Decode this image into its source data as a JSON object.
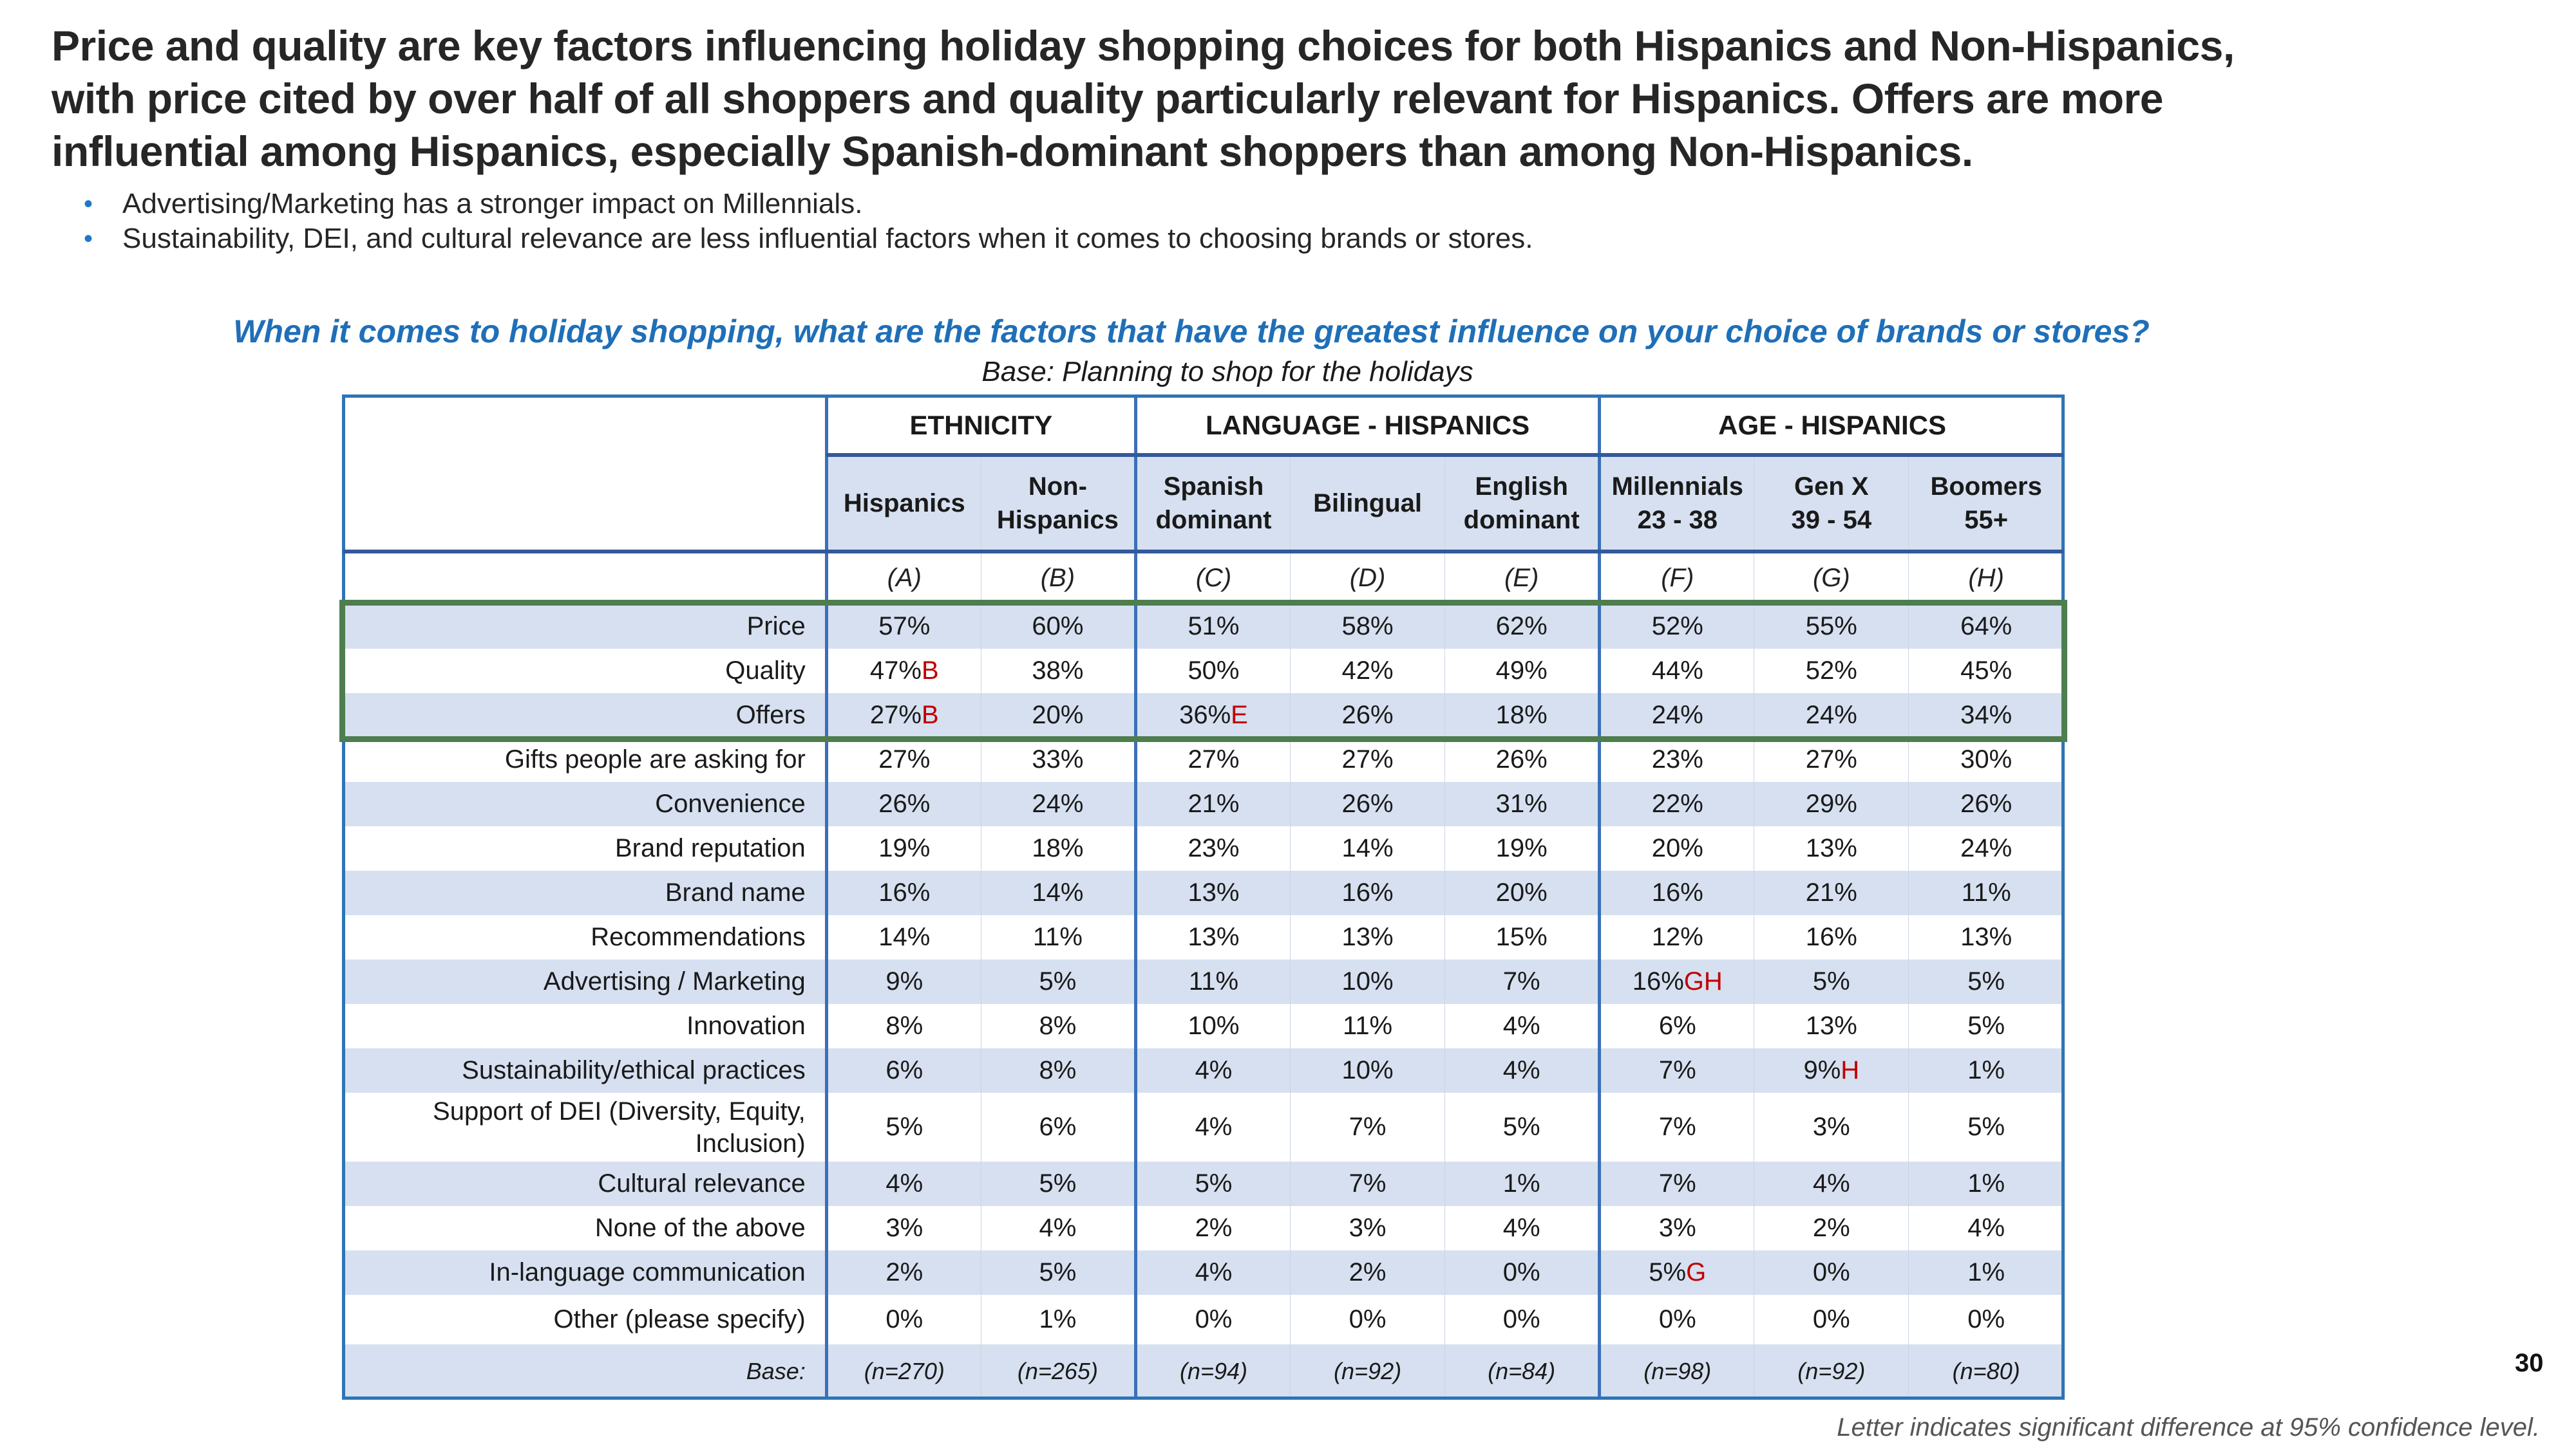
{
  "headline": "Price and quality are key factors influencing holiday shopping choices for both Hispanics and Non-Hispanics, with price cited by over half of all shoppers and quality particularly relevant for Hispanics. Offers are more influential among Hispanics, especially Spanish-dominant shoppers than among Non-Hispanics.",
  "bullets": [
    "Advertising/Marketing has a stronger impact on Millennials.",
    "Sustainability, DEI, and cultural relevance are less influential factors when it comes to choosing brands or stores."
  ],
  "bullet_icon": "•",
  "question": "When it comes to holiday shopping, what are the factors that have the greatest influence on your choice of brands or stores?",
  "base_note": "Base: Planning to shop for the holidays",
  "colors": {
    "accent_blue": "#1f6fb8",
    "border_blue": "#2e74b5",
    "row_shade": "#d6e0f0",
    "highlight_green": "#4e7d4e",
    "significance_red": "#c00000"
  },
  "table": {
    "groups": [
      "ETHNICITY",
      "LANGUAGE - HISPANICS",
      "AGE - HISPANICS"
    ],
    "columns": [
      {
        "line1": "Hispanics",
        "line2": "",
        "letter": "(A)"
      },
      {
        "line1": "Non-",
        "line2": "Hispanics",
        "letter": "(B)"
      },
      {
        "line1": "Spanish",
        "line2": "dominant",
        "letter": "(C)"
      },
      {
        "line1": "Bilingual",
        "line2": "",
        "letter": "(D)"
      },
      {
        "line1": "English",
        "line2": "dominant",
        "letter": "(E)"
      },
      {
        "line1": "Millennials",
        "line2": "23 - 38",
        "letter": "(F)"
      },
      {
        "line1": "Gen X",
        "line2": "39 - 54",
        "letter": "(G)"
      },
      {
        "line1": "Boomers",
        "line2": "55+",
        "letter": "(H)"
      }
    ],
    "rows": [
      {
        "label": "Price",
        "cells": [
          {
            "v": "57%",
            "s": ""
          },
          {
            "v": "60%",
            "s": ""
          },
          {
            "v": "51%",
            "s": ""
          },
          {
            "v": "58%",
            "s": ""
          },
          {
            "v": "62%",
            "s": ""
          },
          {
            "v": "52%",
            "s": ""
          },
          {
            "v": "55%",
            "s": ""
          },
          {
            "v": "64%",
            "s": ""
          }
        ]
      },
      {
        "label": "Quality",
        "cells": [
          {
            "v": "47%",
            "s": "B"
          },
          {
            "v": "38%",
            "s": ""
          },
          {
            "v": "50%",
            "s": ""
          },
          {
            "v": "42%",
            "s": ""
          },
          {
            "v": "49%",
            "s": ""
          },
          {
            "v": "44%",
            "s": ""
          },
          {
            "v": "52%",
            "s": ""
          },
          {
            "v": "45%",
            "s": ""
          }
        ]
      },
      {
        "label": "Offers",
        "cells": [
          {
            "v": "27%",
            "s": "B"
          },
          {
            "v": "20%",
            "s": ""
          },
          {
            "v": "36%",
            "s": "E"
          },
          {
            "v": "26%",
            "s": ""
          },
          {
            "v": "18%",
            "s": ""
          },
          {
            "v": "24%",
            "s": ""
          },
          {
            "v": "24%",
            "s": ""
          },
          {
            "v": "34%",
            "s": ""
          }
        ]
      },
      {
        "label": "Gifts people are asking for",
        "cells": [
          {
            "v": "27%",
            "s": ""
          },
          {
            "v": "33%",
            "s": ""
          },
          {
            "v": "27%",
            "s": ""
          },
          {
            "v": "27%",
            "s": ""
          },
          {
            "v": "26%",
            "s": ""
          },
          {
            "v": "23%",
            "s": ""
          },
          {
            "v": "27%",
            "s": ""
          },
          {
            "v": "30%",
            "s": ""
          }
        ]
      },
      {
        "label": "Convenience",
        "cells": [
          {
            "v": "26%",
            "s": ""
          },
          {
            "v": "24%",
            "s": ""
          },
          {
            "v": "21%",
            "s": ""
          },
          {
            "v": "26%",
            "s": ""
          },
          {
            "v": "31%",
            "s": ""
          },
          {
            "v": "22%",
            "s": ""
          },
          {
            "v": "29%",
            "s": ""
          },
          {
            "v": "26%",
            "s": ""
          }
        ]
      },
      {
        "label": "Brand reputation",
        "cells": [
          {
            "v": "19%",
            "s": ""
          },
          {
            "v": "18%",
            "s": ""
          },
          {
            "v": "23%",
            "s": ""
          },
          {
            "v": "14%",
            "s": ""
          },
          {
            "v": "19%",
            "s": ""
          },
          {
            "v": "20%",
            "s": ""
          },
          {
            "v": "13%",
            "s": ""
          },
          {
            "v": "24%",
            "s": ""
          }
        ]
      },
      {
        "label": "Brand name",
        "cells": [
          {
            "v": "16%",
            "s": ""
          },
          {
            "v": "14%",
            "s": ""
          },
          {
            "v": "13%",
            "s": ""
          },
          {
            "v": "16%",
            "s": ""
          },
          {
            "v": "20%",
            "s": ""
          },
          {
            "v": "16%",
            "s": ""
          },
          {
            "v": "21%",
            "s": ""
          },
          {
            "v": "11%",
            "s": ""
          }
        ]
      },
      {
        "label": "Recommendations",
        "cells": [
          {
            "v": "14%",
            "s": ""
          },
          {
            "v": "11%",
            "s": ""
          },
          {
            "v": "13%",
            "s": ""
          },
          {
            "v": "13%",
            "s": ""
          },
          {
            "v": "15%",
            "s": ""
          },
          {
            "v": "12%",
            "s": ""
          },
          {
            "v": "16%",
            "s": ""
          },
          {
            "v": "13%",
            "s": ""
          }
        ]
      },
      {
        "label": "Advertising / Marketing",
        "cells": [
          {
            "v": "9%",
            "s": ""
          },
          {
            "v": "5%",
            "s": ""
          },
          {
            "v": "11%",
            "s": ""
          },
          {
            "v": "10%",
            "s": ""
          },
          {
            "v": "7%",
            "s": ""
          },
          {
            "v": "16%",
            "s": "GH"
          },
          {
            "v": "5%",
            "s": ""
          },
          {
            "v": "5%",
            "s": ""
          }
        ]
      },
      {
        "label": "Innovation",
        "cells": [
          {
            "v": "8%",
            "s": ""
          },
          {
            "v": "8%",
            "s": ""
          },
          {
            "v": "10%",
            "s": ""
          },
          {
            "v": "11%",
            "s": ""
          },
          {
            "v": "4%",
            "s": ""
          },
          {
            "v": "6%",
            "s": ""
          },
          {
            "v": "13%",
            "s": ""
          },
          {
            "v": "5%",
            "s": ""
          }
        ]
      },
      {
        "label": "Sustainability/ethical practices",
        "cells": [
          {
            "v": "6%",
            "s": ""
          },
          {
            "v": "8%",
            "s": ""
          },
          {
            "v": "4%",
            "s": ""
          },
          {
            "v": "10%",
            "s": ""
          },
          {
            "v": "4%",
            "s": ""
          },
          {
            "v": "7%",
            "s": ""
          },
          {
            "v": "9%",
            "s": "H"
          },
          {
            "v": "1%",
            "s": ""
          }
        ]
      },
      {
        "label": "Support of DEI (Diversity, Equity, Inclusion)",
        "cells": [
          {
            "v": "5%",
            "s": ""
          },
          {
            "v": "6%",
            "s": ""
          },
          {
            "v": "4%",
            "s": ""
          },
          {
            "v": "7%",
            "s": ""
          },
          {
            "v": "5%",
            "s": ""
          },
          {
            "v": "7%",
            "s": ""
          },
          {
            "v": "3%",
            "s": ""
          },
          {
            "v": "5%",
            "s": ""
          }
        ]
      },
      {
        "label": "Cultural relevance",
        "cells": [
          {
            "v": "4%",
            "s": ""
          },
          {
            "v": "5%",
            "s": ""
          },
          {
            "v": "5%",
            "s": ""
          },
          {
            "v": "7%",
            "s": ""
          },
          {
            "v": "1%",
            "s": ""
          },
          {
            "v": "7%",
            "s": ""
          },
          {
            "v": "4%",
            "s": ""
          },
          {
            "v": "1%",
            "s": ""
          }
        ]
      },
      {
        "label": "None of the above",
        "cells": [
          {
            "v": "3%",
            "s": ""
          },
          {
            "v": "4%",
            "s": ""
          },
          {
            "v": "2%",
            "s": ""
          },
          {
            "v": "3%",
            "s": ""
          },
          {
            "v": "4%",
            "s": ""
          },
          {
            "v": "3%",
            "s": ""
          },
          {
            "v": "2%",
            "s": ""
          },
          {
            "v": "4%",
            "s": ""
          }
        ]
      },
      {
        "label": "In-language communication",
        "cells": [
          {
            "v": "2%",
            "s": ""
          },
          {
            "v": "5%",
            "s": ""
          },
          {
            "v": "4%",
            "s": ""
          },
          {
            "v": "2%",
            "s": ""
          },
          {
            "v": "0%",
            "s": ""
          },
          {
            "v": "5%",
            "s": "G"
          },
          {
            "v": "0%",
            "s": ""
          },
          {
            "v": "1%",
            "s": ""
          }
        ]
      },
      {
        "label": "Other (please specify)",
        "cells": [
          {
            "v": "0%",
            "s": ""
          },
          {
            "v": "1%",
            "s": ""
          },
          {
            "v": "0%",
            "s": ""
          },
          {
            "v": "0%",
            "s": ""
          },
          {
            "v": "0%",
            "s": ""
          },
          {
            "v": "0%",
            "s": ""
          },
          {
            "v": "0%",
            "s": ""
          },
          {
            "v": "0%",
            "s": ""
          }
        ]
      }
    ],
    "base_label": "Base:",
    "bases": [
      "(n=270)",
      "(n=265)",
      "(n=94)",
      "(n=92)",
      "(n=84)",
      "(n=98)",
      "(n=92)",
      "(n=80)"
    ],
    "highlighted_rows": [
      "Price",
      "Quality",
      "Offers"
    ]
  },
  "page_number": "30",
  "footnote": "Letter indicates significant difference at 95% confidence level."
}
